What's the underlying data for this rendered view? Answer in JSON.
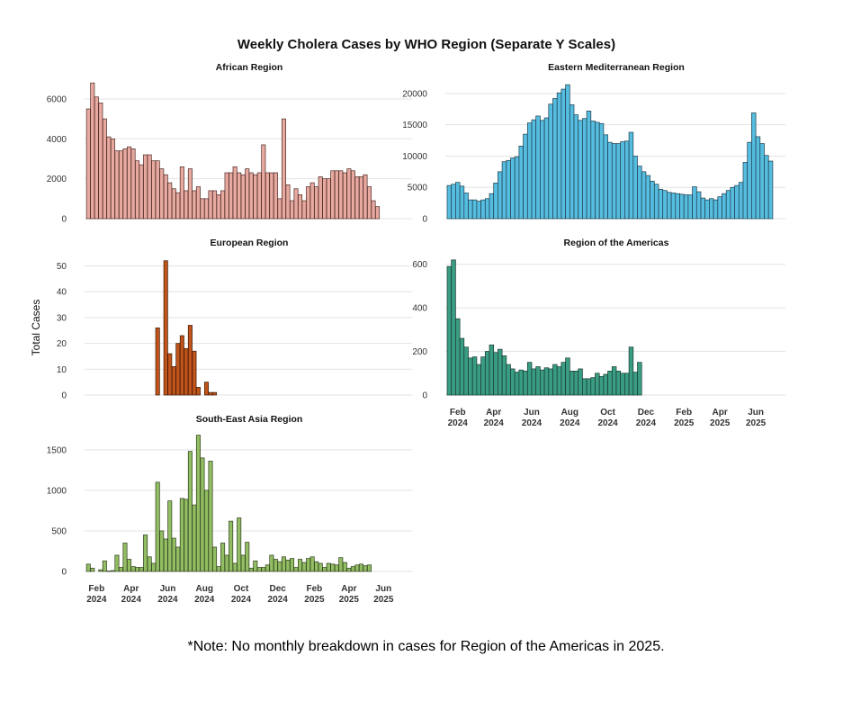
{
  "title": "Weekly Cholera Cases by WHO Region (Separate Y Scales)",
  "ylabel": "Total Cases",
  "note": "*Note: No monthly breakdown in cases for Region of the Americas in 2025.",
  "x_axis_labels": [
    {
      "week": 2.5,
      "month": "Feb",
      "year": "2024"
    },
    {
      "week": 11,
      "month": "Apr",
      "year": "2024"
    },
    {
      "week": 20,
      "month": "Jun",
      "year": "2024"
    },
    {
      "week": 29,
      "month": "Aug",
      "year": "2024"
    },
    {
      "week": 38,
      "month": "Oct",
      "year": "2024"
    },
    {
      "week": 47,
      "month": "Dec",
      "year": "2024"
    },
    {
      "week": 56,
      "month": "Feb",
      "year": "2025"
    },
    {
      "week": 64.5,
      "month": "Apr",
      "year": "2025"
    },
    {
      "week": 73,
      "month": "Jun",
      "year": "2025"
    }
  ],
  "chart_data": [
    {
      "type": "bar",
      "title": "African Region",
      "color": "#e8a9a0",
      "stroke": "#4a2a26",
      "ylim": [
        0,
        6900
      ],
      "yticks": [
        0,
        2000,
        4000,
        6000
      ],
      "show_x_labels": false,
      "x_start": 0,
      "values": [
        5500,
        6800,
        6100,
        5800,
        5000,
        4100,
        4000,
        3400,
        3400,
        3500,
        3600,
        3500,
        2900,
        2700,
        3200,
        3200,
        2900,
        2900,
        2500,
        2200,
        1800,
        1500,
        1300,
        2600,
        1400,
        2500,
        1400,
        1600,
        1000,
        1000,
        1400,
        1400,
        1200,
        1400,
        2300,
        2300,
        2600,
        2300,
        2200,
        2500,
        2300,
        2200,
        2300,
        3700,
        2300,
        2300,
        2300,
        1000,
        5000,
        1700,
        900,
        1500,
        1200,
        900,
        1600,
        1800,
        1600,
        2100,
        2000,
        2000,
        2400,
        2400,
        2400,
        2300,
        2500,
        2400,
        2100,
        2100,
        2200,
        1600,
        900,
        600
      ]
    },
    {
      "type": "bar",
      "title": "Eastern Mediterranean Region",
      "color": "#56bde0",
      "stroke": "#1d3c49",
      "ylim": [
        0,
        22000
      ],
      "yticks": [
        0,
        5000,
        10000,
        15000,
        20000
      ],
      "show_x_labels": false,
      "x_start": 0,
      "values": [
        5300,
        5500,
        5800,
        5200,
        4100,
        3000,
        3000,
        2800,
        3000,
        3200,
        4000,
        5700,
        7500,
        9100,
        9300,
        9700,
        9900,
        11600,
        13500,
        15300,
        15800,
        16400,
        15700,
        16100,
        18300,
        19200,
        20100,
        20700,
        21400,
        18200,
        16600,
        15700,
        16000,
        17200,
        15600,
        15400,
        15200,
        13400,
        12200,
        12000,
        12000,
        12300,
        12400,
        13800,
        10000,
        8400,
        7500,
        6900,
        6000,
        5500,
        4700,
        4500,
        4200,
        4100,
        4000,
        3900,
        3800,
        3800,
        5100,
        4300,
        3300,
        3000,
        3200,
        3000,
        3500,
        4000,
        4500,
        5000,
        5300,
        5800,
        9000,
        12200,
        16900,
        13100,
        12000,
        10100,
        9200
      ]
    },
    {
      "type": "bar",
      "title": "European Region",
      "color": "#c1541a",
      "stroke": "#3a1a08",
      "ylim": [
        0,
        54
      ],
      "yticks": [
        0,
        10,
        20,
        30,
        40,
        50
      ],
      "show_x_labels": false,
      "x_start": 0,
      "values": [
        0,
        0,
        0,
        0,
        0,
        0,
        0,
        0,
        0,
        0,
        0,
        0,
        0,
        0,
        0,
        0,
        0,
        26,
        0,
        52,
        16,
        11,
        20,
        23,
        18,
        27,
        17,
        3,
        0,
        5,
        1,
        1
      ]
    },
    {
      "type": "bar",
      "title": "Region of the Americas",
      "color": "#3a9d83",
      "stroke": "#17382f",
      "ylim": [
        0,
        640
      ],
      "yticks": [
        0,
        200,
        400,
        600
      ],
      "show_x_labels": true,
      "x_start": 0,
      "values": [
        590,
        620,
        350,
        260,
        220,
        170,
        175,
        140,
        175,
        200,
        230,
        195,
        210,
        180,
        140,
        120,
        105,
        115,
        110,
        150,
        120,
        130,
        115,
        125,
        120,
        140,
        130,
        150,
        170,
        110,
        110,
        120,
        75,
        75,
        80,
        100,
        85,
        95,
        110,
        130,
        110,
        100,
        100,
        220,
        105,
        150
      ]
    },
    {
      "type": "bar",
      "title": "South-East Asia Region",
      "color": "#92bd62",
      "stroke": "#2d3d1e",
      "ylim": [
        0,
        1720
      ],
      "yticks": [
        0,
        500,
        1000,
        1500
      ],
      "show_x_labels": true,
      "x_start": 0,
      "values": [
        90,
        40,
        0,
        20,
        130,
        5,
        10,
        200,
        50,
        350,
        150,
        60,
        50,
        50,
        450,
        180,
        100,
        1100,
        500,
        400,
        870,
        410,
        300,
        900,
        890,
        1480,
        820,
        1680,
        1400,
        1000,
        1360,
        300,
        60,
        350,
        200,
        620,
        100,
        660,
        200,
        360,
        40,
        130,
        50,
        50,
        80,
        200,
        150,
        120,
        180,
        140,
        160,
        50,
        150,
        110,
        160,
        180,
        120,
        100,
        50,
        100,
        90,
        80,
        170,
        110,
        40,
        60,
        80,
        90,
        70,
        80
      ]
    }
  ]
}
